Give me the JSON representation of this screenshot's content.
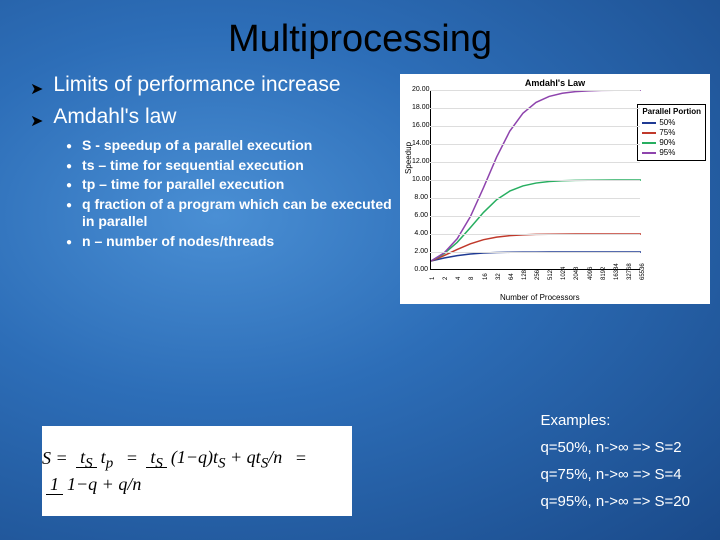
{
  "title": "Multiprocessing",
  "bullets": {
    "b1": "Limits of performance increase",
    "b2": "Amdahl's law"
  },
  "sub": {
    "s1": "S - speedup of a parallel execution",
    "s2": "ts – time for sequential execution",
    "s3": "tp – time for parallel execution",
    "s4": "q fraction of a program which can be executed in parallel",
    "s5": "n – number of nodes/threads"
  },
  "chart": {
    "title": "Amdahl's Law",
    "ylabel": "Speedup",
    "xlabel": "Number of Processors",
    "legend_title": "Parallel Portion",
    "yticks": [
      "0.00",
      "2.00",
      "4.00",
      "6.00",
      "8.00",
      "10.00",
      "12.00",
      "14.00",
      "16.00",
      "18.00",
      "20.00"
    ],
    "xticks": [
      "1",
      "2",
      "4",
      "8",
      "16",
      "32",
      "64",
      "128",
      "256",
      "512",
      "1024",
      "2048",
      "4096",
      "8192",
      "16384",
      "32768",
      "65536"
    ],
    "series": [
      {
        "label": "50%",
        "color": "#1f3a93",
        "limit": 2
      },
      {
        "label": "75%",
        "color": "#c0392b",
        "limit": 4
      },
      {
        "label": "90%",
        "color": "#27ae60",
        "limit": 10
      },
      {
        "label": "95%",
        "color": "#8e44ad",
        "limit": 20
      }
    ],
    "ymax": 20
  },
  "formula": {
    "s": "S",
    "ts": "t",
    "ts_sub": "S",
    "tp": "t",
    "tp_sub": "p",
    "q": "q",
    "n": "n",
    "one": "1"
  },
  "examples": {
    "heading": "Examples:",
    "e1": "q=50%, n->∞ => S=2",
    "e2": "q=75%, n->∞ => S=4",
    "e3": "q=95%, n->∞ => S=20"
  }
}
